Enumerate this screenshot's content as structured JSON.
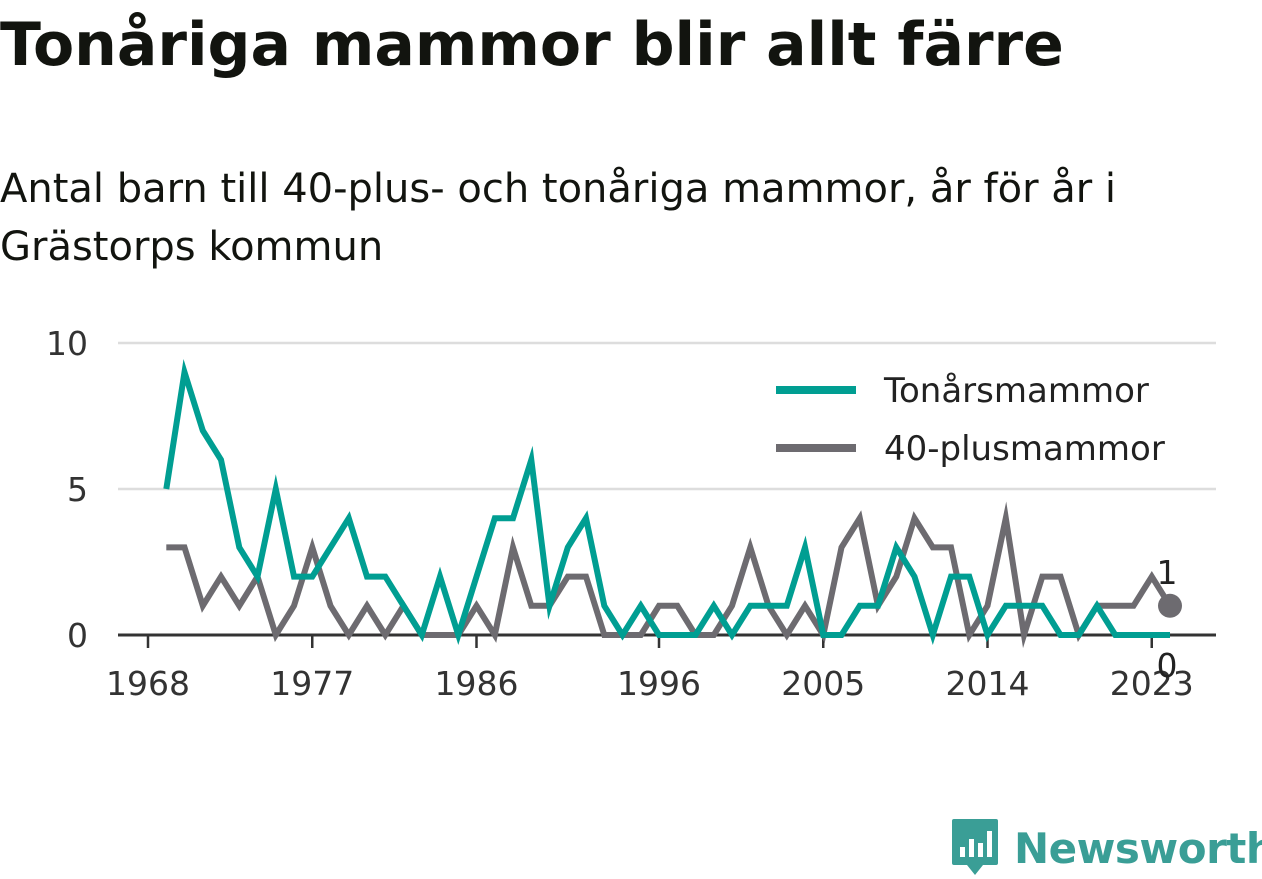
{
  "title": "Tonåriga mammor blir allt färre",
  "subtitle": "Antal barn till 40-plus- och tonåriga mammor, år för år i Grästorps kommun",
  "brand": {
    "name": "Newsworthy",
    "icon": "newsworthy-logo-icon"
  },
  "colors": {
    "teen": "#009e92",
    "forty": "#6d6b70",
    "grid": "#dddddd",
    "axis": "#333333"
  },
  "chart_data": {
    "type": "line",
    "title": "Tonåriga mammor blir allt färre",
    "subtitle": "Antal barn till 40-plus- och tonåriga mammor, år för år i Grästorps kommun",
    "xlabel": "",
    "ylabel": "",
    "xlim": [
      1968,
      2024
    ],
    "ylim": [
      0,
      10
    ],
    "x_ticks": [
      "1968",
      "1977",
      "1986",
      "1996",
      "2005",
      "2014",
      "2023"
    ],
    "y_ticks": [
      "0",
      "5",
      "10"
    ],
    "grid": true,
    "legend_position": "top-right",
    "x": [
      1969,
      1970,
      1971,
      1972,
      1973,
      1974,
      1975,
      1976,
      1977,
      1978,
      1979,
      1980,
      1981,
      1982,
      1983,
      1984,
      1985,
      1986,
      1987,
      1988,
      1989,
      1990,
      1991,
      1992,
      1993,
      1994,
      1995,
      1996,
      1997,
      1998,
      1999,
      2000,
      2001,
      2002,
      2003,
      2004,
      2005,
      2006,
      2007,
      2008,
      2009,
      2010,
      2011,
      2012,
      2013,
      2014,
      2015,
      2016,
      2017,
      2018,
      2019,
      2020,
      2021,
      2022,
      2023,
      2024
    ],
    "series": [
      {
        "name": "Tonårsmammor",
        "color": "#009e92",
        "values": [
          5,
          9,
          7,
          6,
          3,
          2,
          5,
          2,
          2,
          3,
          4,
          2,
          2,
          1,
          0,
          2,
          0,
          2,
          4,
          4,
          6,
          1,
          3,
          4,
          1,
          0,
          1,
          0,
          0,
          0,
          1,
          0,
          1,
          1,
          1,
          3,
          0,
          0,
          1,
          1,
          3,
          2,
          0,
          2,
          2,
          0,
          1,
          1,
          1,
          0,
          0,
          1,
          0,
          0,
          0,
          0
        ],
        "end_label": "0"
      },
      {
        "name": "40-plusmammor",
        "color": "#6d6b70",
        "values": [
          3,
          3,
          1,
          2,
          1,
          2,
          0,
          1,
          3,
          1,
          0,
          1,
          0,
          1,
          0,
          0,
          0,
          1,
          0,
          3,
          1,
          1,
          2,
          2,
          0,
          0,
          0,
          1,
          1,
          0,
          0,
          1,
          3,
          1,
          0,
          1,
          0,
          3,
          4,
          1,
          2,
          4,
          3,
          3,
          0,
          1,
          4,
          0,
          2,
          2,
          0,
          1,
          1,
          1,
          2,
          1
        ],
        "end_label": "1"
      }
    ]
  }
}
